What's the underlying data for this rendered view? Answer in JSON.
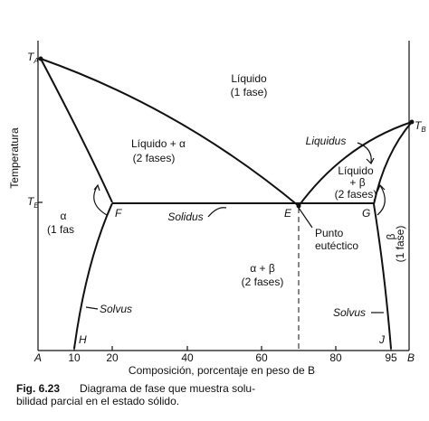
{
  "diagram": {
    "y_axis_title": "Temperatura",
    "x_axis_title": "Composición, porcentaje en peso de B",
    "temperature_marks": [
      {
        "letter": "T",
        "sub": "A"
      },
      {
        "letter": "T",
        "sub": "E"
      },
      {
        "letter": "T",
        "sub": "B"
      }
    ],
    "x_labels": [
      "A",
      "10",
      "20",
      "40",
      "60",
      "80",
      "95",
      "B"
    ],
    "regions": {
      "liquid": [
        "Líquido",
        "(1 fase)"
      ],
      "liquid_alpha": [
        "Líquido + α",
        "(2 fases)"
      ],
      "liquid_beta": [
        "Líquido",
        "+ β",
        "(2 fases)"
      ],
      "alpha": [
        "α",
        "(1 fas"
      ],
      "beta": [
        "β",
        "(1 fase)"
      ],
      "alpha_beta": [
        "α + β",
        "(2 fases)"
      ]
    },
    "curve_labels": {
      "liquidus": "Liquidus",
      "solidus": "Solidus",
      "solvus_left": "Solvus",
      "solvus_right": "Solvus",
      "eutectic": [
        "Punto",
        "eutéctico"
      ]
    },
    "points": {
      "F": "F",
      "E": "E",
      "G": "G",
      "H": "H",
      "J": "J"
    },
    "caption": {
      "number": "Fig. 6.23",
      "lines": [
        "Diagrama de fase que muestra solu-",
        "bilidad parcial en el estado sólido."
      ]
    }
  }
}
